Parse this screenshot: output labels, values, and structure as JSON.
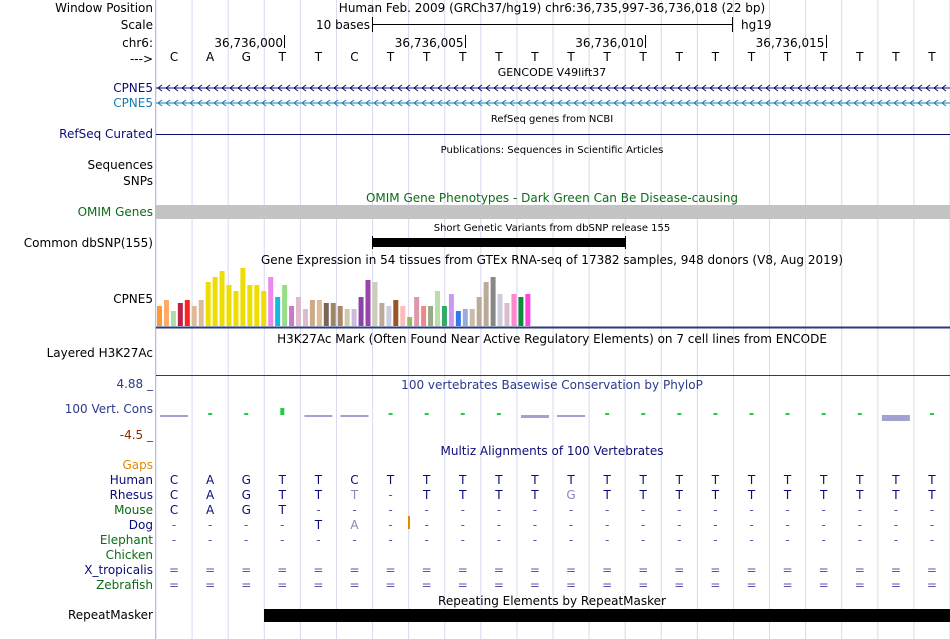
{
  "header": {
    "window_position_label": "Window Position",
    "scale_label": "Scale",
    "chrom_label": "chr6:",
    "strand_label": "--->",
    "window_position_text": "Human Feb. 2009 (GRCh37/hg19)   chr6:36,735,997-36,736,018 (22 bp)",
    "scale_text": "10 bases",
    "assembly": "hg19",
    "ticks": [
      "36,736,000",
      "36,736,005",
      "36,736,010",
      "36,736,015"
    ]
  },
  "sequence": [
    "C",
    "A",
    "G",
    "T",
    "T",
    "C",
    "T",
    "T",
    "T",
    "T",
    "T",
    "T",
    "T",
    "T",
    "T",
    "T",
    "T",
    "T",
    "T",
    "T",
    "T",
    "T"
  ],
  "tracks": {
    "gencode": {
      "title": "GENCODE V49lift37",
      "genes": [
        "CPNE5",
        "CPNE5"
      ],
      "colors": [
        "#0c0c78",
        "#1a7ab3"
      ]
    },
    "refseq": {
      "label": "RefSeq Curated",
      "title": "RefSeq genes from NCBI"
    },
    "publications": {
      "title": "Publications: Sequences in Scientific Articles",
      "labels": [
        "Sequences",
        "SNPs"
      ]
    },
    "omim": {
      "label": "OMIM Genes",
      "title": "OMIM Gene Phenotypes - Dark Green Can Be Disease-causing",
      "color": "#0d6b18"
    },
    "dbsnp": {
      "label": "Common dbSNP(155)",
      "title": "Short Genetic Variants from dbSNP release 155"
    },
    "gtex": {
      "label": "CPNE5",
      "title": "Gene Expression in 54 tissues from GTEx RNA-seq of 17382 samples, 948 donors (V8, Aug 2019)",
      "values": [
        0.35,
        0.45,
        0.25,
        0.4,
        0.45,
        0.35,
        0.45,
        0.75,
        0.85,
        0.95,
        0.7,
        0.6,
        1.0,
        0.7,
        0.7,
        0.6,
        0.85,
        0.5,
        0.7,
        0.35,
        0.5,
        0.3,
        0.45,
        0.45,
        0.4,
        0.4,
        0.35,
        0.3,
        0.3,
        0.5,
        0.8,
        0.75,
        0.4,
        0.35,
        0.45,
        0.35,
        0.15,
        0.5,
        0.35,
        0.35,
        0.6,
        0.35,
        0.55,
        0.25,
        0.3,
        0.3,
        0.5,
        0.75,
        0.85,
        0.55,
        0.4,
        0.55,
        0.5,
        0.55
      ],
      "colors": [
        "#ff9933",
        "#ffaa66",
        "#aaddaa",
        "#bb2244",
        "#ff2222",
        "#ddbb99",
        "#ddbb99",
        "#eedd00",
        "#eedd00",
        "#eedd00",
        "#eedd00",
        "#eedd00",
        "#eedd00",
        "#eedd00",
        "#eedd00",
        "#eedd00",
        "#ee88ee",
        "#11bbdd",
        "#99dd88",
        "#cc77cc",
        "#ddbbcc",
        "#ddbbcc",
        "#ccaa88",
        "#ddbb99",
        "#776655",
        "#998866",
        "#aa8866",
        "#ccccaa",
        "#ccbbdd",
        "#8844aa",
        "#9944aa",
        "#ccccbb",
        "#bbaa99",
        "#ccccdd",
        "#995522",
        "#ffbbbb",
        "#99bb66",
        "#dd99aa",
        "#ee8888",
        "#99aa88",
        "#bbddaa",
        "#33aa66",
        "#cc99ee",
        "#3377ee",
        "#99aadd",
        "#ccbbaa",
        "#bbaa99",
        "#bbaa99",
        "#888888",
        "#ccccdd",
        "#ddbbcc",
        "#ff88cc",
        "#118844",
        "#ff44dd"
      ]
    },
    "h3k27ac": {
      "label": "Layered H3K27Ac",
      "title": "H3K27Ac Mark (Often Found Near Active Regulatory Elements) on 7 cell lines from ENCODE"
    },
    "conservation": {
      "label": "100 Vert. Cons",
      "title": "100 vertebrates Basewise Conservation by PhyloP",
      "ymax": "4.88 _",
      "ymin": "-4.5 _",
      "values": [
        -0.1,
        0.05,
        0.2,
        1.4,
        -0.3,
        -0.1,
        0.05,
        0.05,
        0.05,
        0.05,
        -0.6,
        -0.3,
        0.05,
        0.05,
        0.05,
        0.05,
        0.05,
        0.05,
        0.05,
        0.05,
        -1.2,
        0.05
      ]
    },
    "multiz": {
      "title": "Multiz Alignments of 100 Vertebrates",
      "gaps_label": "Gaps",
      "species": [
        {
          "name": "Human",
          "row": [
            "C",
            "A",
            "G",
            "T",
            "T",
            "C",
            "T",
            "T",
            "T",
            "T",
            "T",
            "T",
            "T",
            "T",
            "T",
            "T",
            "T",
            "T",
            "T",
            "T",
            "T",
            "T"
          ]
        },
        {
          "name": "Rhesus",
          "row": [
            "C",
            "A",
            "G",
            "T",
            "T",
            "T",
            "-",
            "T",
            "T",
            "T",
            "T",
            "G",
            "T",
            "T",
            "T",
            "T",
            "T",
            "T",
            "T",
            "T",
            "T",
            "T"
          ]
        },
        {
          "name": "Mouse",
          "row": [
            "C",
            "A",
            "G",
            "T",
            "-",
            "-",
            "-",
            "-",
            "-",
            "-",
            "-",
            "-",
            "-",
            "-",
            "-",
            "-",
            "-",
            "-",
            "-",
            "-",
            "-",
            "-"
          ]
        },
        {
          "name": "Dog",
          "row": [
            "-",
            "-",
            "-",
            "-",
            "T",
            "A",
            "-",
            "-",
            "-",
            "-",
            "-",
            "-",
            "-",
            "-",
            "-",
            "-",
            "-",
            "-",
            "-",
            "-",
            "-",
            "-"
          ]
        },
        {
          "name": "Elephant",
          "row": [
            "-",
            "-",
            "-",
            "-",
            "-",
            "-",
            "-",
            "-",
            "-",
            "-",
            "-",
            "-",
            "-",
            "-",
            "-",
            "-",
            "-",
            "-",
            "-",
            "-",
            "-",
            "-"
          ]
        },
        {
          "name": "Chicken",
          "row": [
            "",
            "",
            "",
            "",
            "",
            "",
            "",
            "",
            "",
            "",
            "",
            "",
            "",
            "",
            "",
            "",
            "",
            "",
            "",
            "",
            "",
            ""
          ]
        },
        {
          "name": "X_tropicalis",
          "row": [
            "=",
            "=",
            "=",
            "=",
            "=",
            "=",
            "=",
            "=",
            "=",
            "=",
            "=",
            "=",
            "=",
            "=",
            "=",
            "=",
            "=",
            "=",
            "=",
            "=",
            "=",
            "="
          ]
        },
        {
          "name": "Zebrafish",
          "row": [
            "=",
            "=",
            "=",
            "=",
            "=",
            "=",
            "=",
            "=",
            "=",
            "=",
            "=",
            "=",
            "=",
            "=",
            "=",
            "=",
            "=",
            "=",
            "=",
            "=",
            "=",
            "="
          ]
        }
      ]
    },
    "repeatmasker": {
      "label": "RepeatMasker",
      "title": "Repeating Elements by RepeatMasker"
    }
  }
}
